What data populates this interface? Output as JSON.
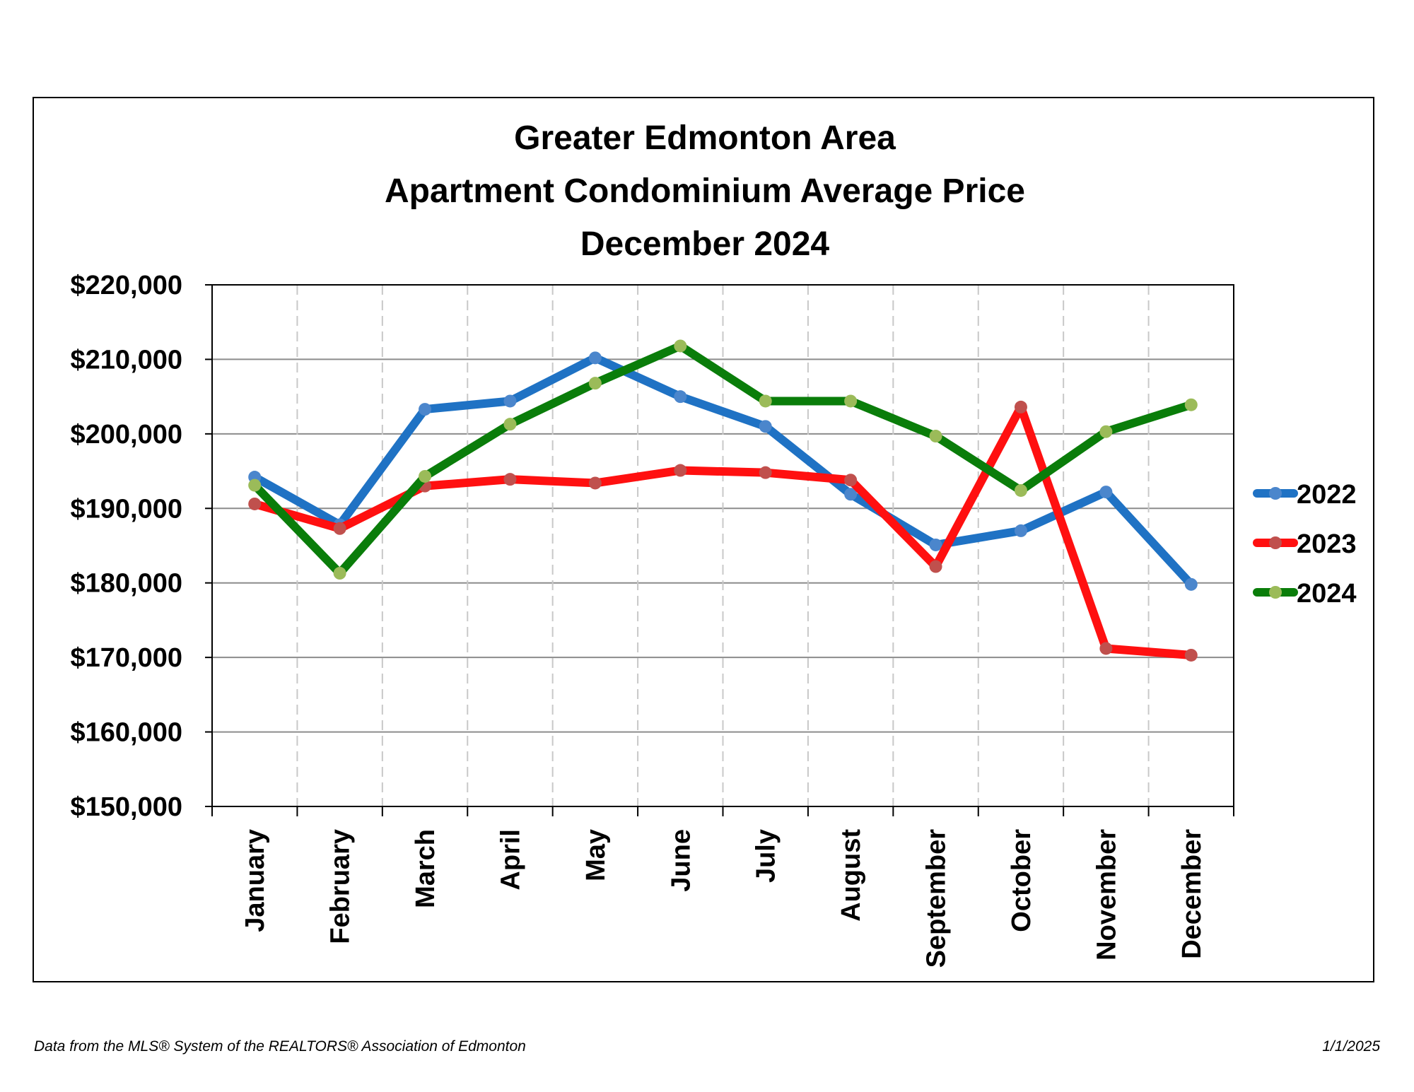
{
  "chart_data": {
    "type": "line",
    "title": [
      "Greater Edmonton Area",
      "Apartment Condominium Average Price",
      "December 2024"
    ],
    "categories": [
      "January",
      "February",
      "March",
      "April",
      "May",
      "June",
      "July",
      "August",
      "September",
      "October",
      "November",
      "December"
    ],
    "ylim": [
      150000,
      220000
    ],
    "yticks": [
      150000,
      160000,
      170000,
      180000,
      190000,
      200000,
      210000,
      220000
    ],
    "ytick_labels": [
      "$150,000",
      "$160,000",
      "$170,000",
      "$180,000",
      "$190,000",
      "$200,000",
      "$210,000",
      "$220,000"
    ],
    "grid": "horizontal solid, vertical dashed",
    "legend_position": "right",
    "series": [
      {
        "name": "2022",
        "line_color": "#1f72c4",
        "marker_color": "#4b86cc",
        "values": [
          194200,
          187800,
          203300,
          204400,
          210200,
          205000,
          201000,
          191900,
          185100,
          187000,
          192200,
          179800
        ]
      },
      {
        "name": "2023",
        "line_color": "#ff1010",
        "marker_color": "#c0504d",
        "values": [
          190600,
          187300,
          193000,
          193900,
          193400,
          195100,
          194800,
          193800,
          182200,
          203600,
          171200,
          170300
        ]
      },
      {
        "name": "2024",
        "line_color": "#0a7d0a",
        "marker_color": "#9bbb59",
        "values": [
          193100,
          181300,
          194300,
          201300,
          206800,
          211800,
          204400,
          204400,
          199700,
          192400,
          200300,
          203900
        ]
      }
    ]
  },
  "footer": {
    "source": "Data from the MLS® System of the REALTORS® Association of Edmonton",
    "date": "1/1/2025"
  }
}
